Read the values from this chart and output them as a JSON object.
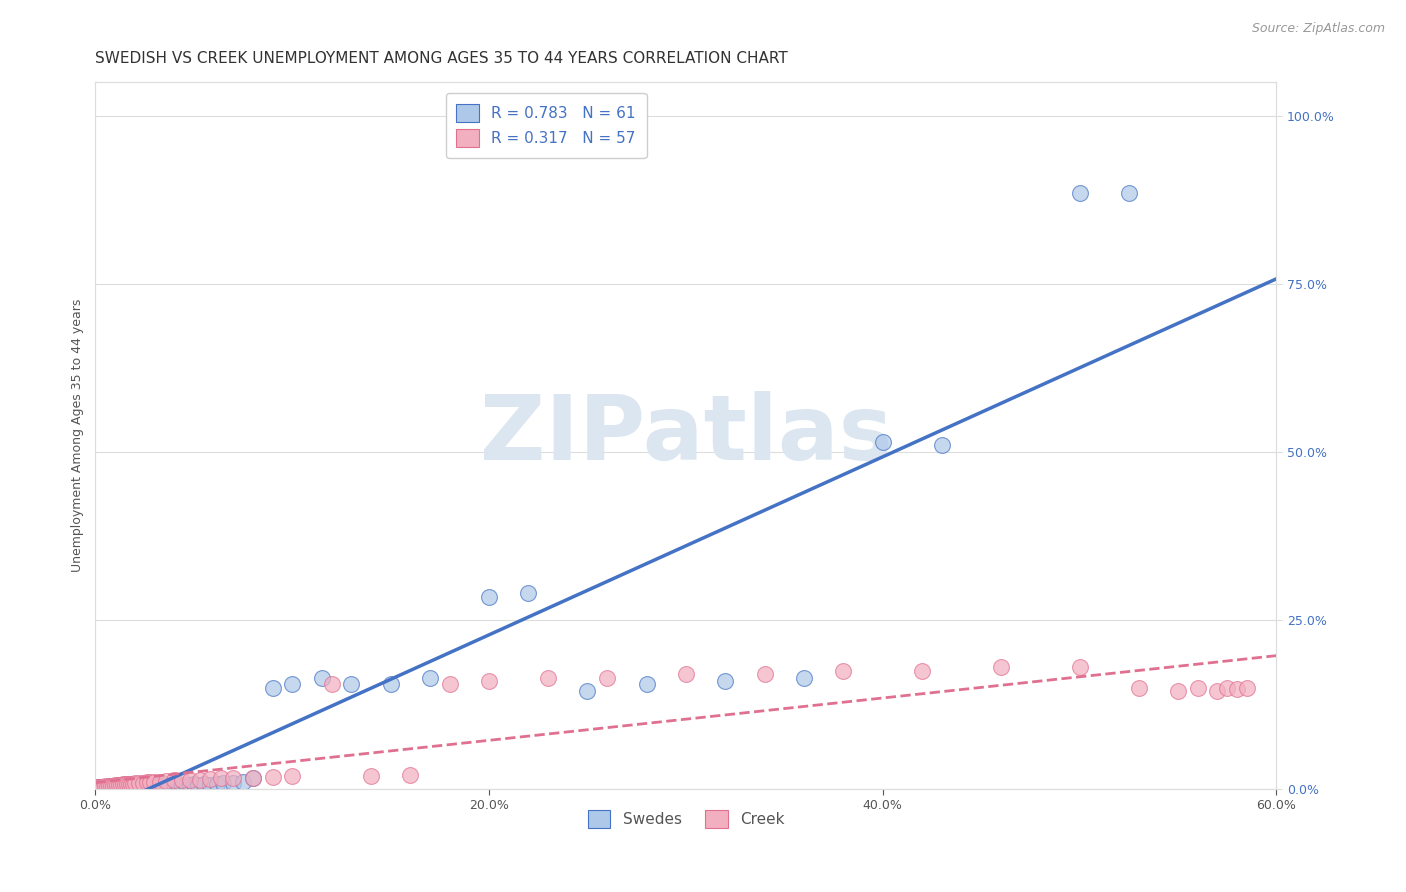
{
  "title": "SWEDISH VS CREEK UNEMPLOYMENT AMONG AGES 35 TO 44 YEARS CORRELATION CHART",
  "source": "Source: ZipAtlas.com",
  "ylabel": "Unemployment Among Ages 35 to 44 years",
  "xlim": [
    0.0,
    0.6
  ],
  "ylim": [
    0.0,
    1.05
  ],
  "x_tick_vals": [
    0.0,
    0.2,
    0.4,
    0.6
  ],
  "y_tick_vals": [
    0.0,
    0.25,
    0.5,
    0.75,
    1.0
  ],
  "swedes_R": 0.783,
  "swedes_N": 61,
  "creek_R": 0.317,
  "creek_N": 57,
  "swedes_color": "#adc8e8",
  "creek_color": "#f2afc0",
  "swedes_line_color": "#4472c4",
  "creek_line_color": "#e07090",
  "background_color": "#ffffff",
  "watermark_text": "ZIPatlas",
  "watermark_color": "#dce6f0",
  "legend_label_swedes": "Swedes",
  "legend_label_creek": "Creek",
  "swedes_x": [
    0.001,
    0.002,
    0.003,
    0.004,
    0.005,
    0.006,
    0.007,
    0.008,
    0.009,
    0.01,
    0.011,
    0.012,
    0.013,
    0.014,
    0.015,
    0.016,
    0.017,
    0.018,
    0.019,
    0.02,
    0.021,
    0.022,
    0.023,
    0.025,
    0.026,
    0.028,
    0.03,
    0.032,
    0.034,
    0.036,
    0.038,
    0.04,
    0.042,
    0.044,
    0.046,
    0.048,
    0.05,
    0.052,
    0.055,
    0.058,
    0.062,
    0.065,
    0.07,
    0.075,
    0.08,
    0.09,
    0.1,
    0.115,
    0.13,
    0.15,
    0.17,
    0.2,
    0.22,
    0.25,
    0.28,
    0.32,
    0.36,
    0.4,
    0.43,
    0.5,
    0.525
  ],
  "swedes_y": [
    0.002,
    0.002,
    0.003,
    0.002,
    0.003,
    0.002,
    0.004,
    0.002,
    0.003,
    0.004,
    0.003,
    0.003,
    0.004,
    0.002,
    0.004,
    0.003,
    0.003,
    0.004,
    0.003,
    0.004,
    0.003,
    0.004,
    0.003,
    0.005,
    0.004,
    0.004,
    0.004,
    0.005,
    0.004,
    0.005,
    0.005,
    0.005,
    0.005,
    0.004,
    0.005,
    0.005,
    0.006,
    0.005,
    0.006,
    0.005,
    0.007,
    0.008,
    0.008,
    0.01,
    0.015,
    0.15,
    0.155,
    0.165,
    0.155,
    0.155,
    0.165,
    0.285,
    0.29,
    0.145,
    0.155,
    0.16,
    0.165,
    0.515,
    0.51,
    0.885,
    0.885
  ],
  "creek_x": [
    0.001,
    0.002,
    0.003,
    0.004,
    0.005,
    0.006,
    0.007,
    0.008,
    0.009,
    0.01,
    0.011,
    0.012,
    0.013,
    0.014,
    0.015,
    0.016,
    0.017,
    0.018,
    0.019,
    0.02,
    0.022,
    0.024,
    0.026,
    0.028,
    0.03,
    0.033,
    0.036,
    0.04,
    0.044,
    0.048,
    0.053,
    0.058,
    0.064,
    0.07,
    0.08,
    0.09,
    0.1,
    0.12,
    0.14,
    0.16,
    0.18,
    0.2,
    0.23,
    0.26,
    0.3,
    0.34,
    0.38,
    0.42,
    0.46,
    0.5,
    0.53,
    0.55,
    0.56,
    0.57,
    0.575,
    0.58,
    0.585
  ],
  "creek_y": [
    0.002,
    0.003,
    0.003,
    0.003,
    0.004,
    0.003,
    0.004,
    0.004,
    0.004,
    0.005,
    0.005,
    0.005,
    0.005,
    0.006,
    0.006,
    0.006,
    0.007,
    0.007,
    0.007,
    0.008,
    0.008,
    0.008,
    0.009,
    0.009,
    0.01,
    0.01,
    0.011,
    0.012,
    0.012,
    0.013,
    0.013,
    0.014,
    0.015,
    0.015,
    0.016,
    0.017,
    0.018,
    0.155,
    0.018,
    0.02,
    0.155,
    0.16,
    0.165,
    0.165,
    0.17,
    0.17,
    0.175,
    0.175,
    0.18,
    0.18,
    0.15,
    0.145,
    0.15,
    0.145,
    0.15,
    0.148,
    0.15
  ],
  "title_fontsize": 11,
  "source_fontsize": 9,
  "axis_label_fontsize": 9,
  "tick_fontsize": 9,
  "legend_fontsize": 11
}
